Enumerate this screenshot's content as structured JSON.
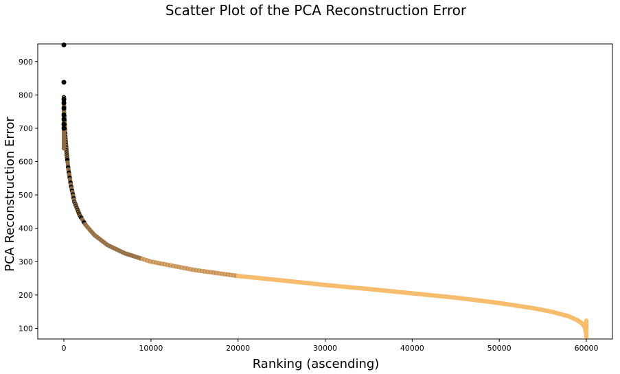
{
  "chart_data": {
    "type": "scatter",
    "title": "Scatter Plot of the PCA Reconstruction Error",
    "xlabel": "Ranking (ascending)",
    "ylabel": "PCA Reconstruction Error",
    "xlim": [
      -3000,
      63000
    ],
    "ylim": [
      68,
      953
    ],
    "xticks": [
      0,
      10000,
      20000,
      30000,
      40000,
      50000,
      60000
    ],
    "yticks": [
      100,
      200,
      300,
      400,
      500,
      600,
      700,
      800,
      900
    ],
    "grid": false,
    "legend": "none",
    "colors": {
      "light": "#f7bd6e",
      "dark": "#000000",
      "mixed": "#8c6a44"
    },
    "curve": [
      {
        "x": 0,
        "y": 793
      },
      {
        "x": 50,
        "y": 735
      },
      {
        "x": 150,
        "y": 680
      },
      {
        "x": 300,
        "y": 630
      },
      {
        "x": 500,
        "y": 580
      },
      {
        "x": 800,
        "y": 530
      },
      {
        "x": 1200,
        "y": 480
      },
      {
        "x": 1800,
        "y": 440
      },
      {
        "x": 2500,
        "y": 410
      },
      {
        "x": 3500,
        "y": 380
      },
      {
        "x": 5000,
        "y": 350
      },
      {
        "x": 7000,
        "y": 325
      },
      {
        "x": 10000,
        "y": 300
      },
      {
        "x": 15000,
        "y": 275
      },
      {
        "x": 20000,
        "y": 257
      },
      {
        "x": 25000,
        "y": 244
      },
      {
        "x": 30000,
        "y": 230
      },
      {
        "x": 35000,
        "y": 218
      },
      {
        "x": 40000,
        "y": 205
      },
      {
        "x": 45000,
        "y": 192
      },
      {
        "x": 50000,
        "y": 176
      },
      {
        "x": 54000,
        "y": 160
      },
      {
        "x": 56000,
        "y": 150
      },
      {
        "x": 58000,
        "y": 136
      },
      {
        "x": 59000,
        "y": 124
      },
      {
        "x": 59500,
        "y": 115
      },
      {
        "x": 59800,
        "y": 105
      },
      {
        "x": 59950,
        "y": 90
      },
      {
        "x": 60000,
        "y": 75
      }
    ],
    "outliers": [
      {
        "x": 0,
        "y": 950
      },
      {
        "x": 0,
        "y": 838
      },
      {
        "x": 0,
        "y": 787
      },
      {
        "x": 0,
        "y": 776
      },
      {
        "x": 0,
        "y": 760
      },
      {
        "x": 0,
        "y": 740
      },
      {
        "x": 0,
        "y": 727
      },
      {
        "x": 0,
        "y": 712
      },
      {
        "x": 0,
        "y": 700
      }
    ]
  }
}
